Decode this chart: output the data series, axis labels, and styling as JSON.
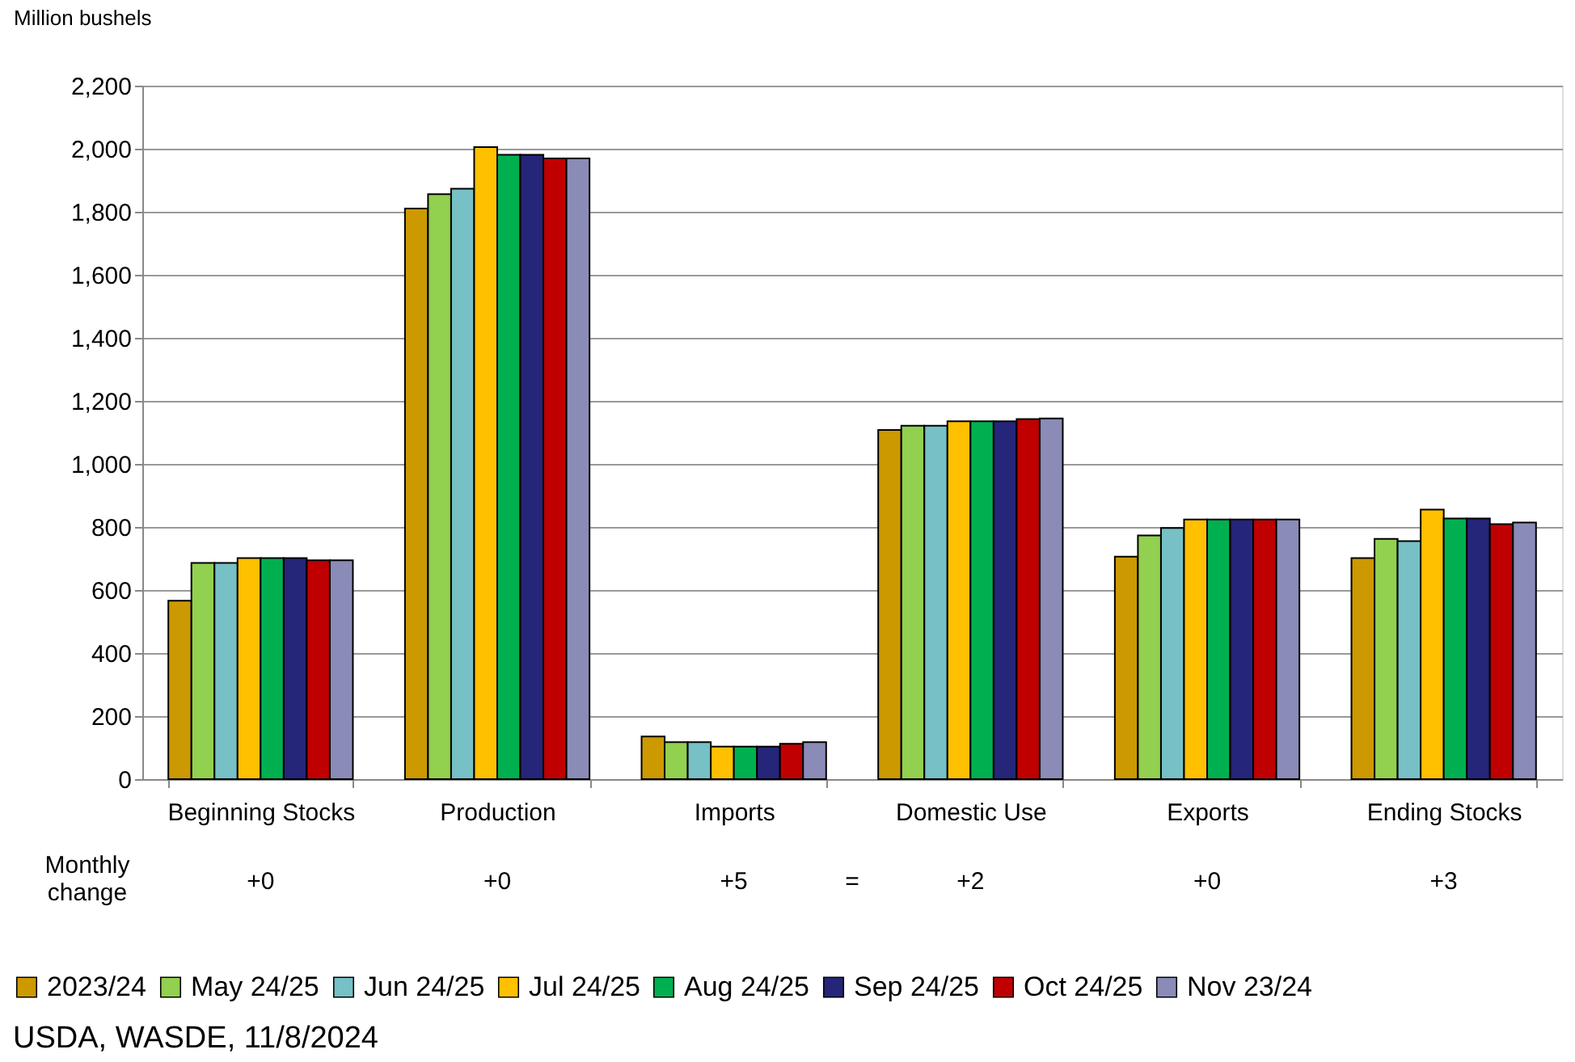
{
  "chart_data": {
    "type": "bar",
    "ylabel": "Million bushels",
    "categories": [
      "Beginning Stocks",
      "Production",
      "Imports",
      "Domestic Use",
      "Exports",
      "Ending Stocks"
    ],
    "series": [
      {
        "name": "2023/24",
        "color": "#cc9900",
        "values": [
          566,
          1810,
          135,
          1108,
          706,
          701
        ]
      },
      {
        "name": "May 24/25",
        "color": "#92d050",
        "values": [
          686,
          1856,
          117,
          1121,
          773,
          762
        ]
      },
      {
        "name": "Jun 24/25",
        "color": "#76c0c6",
        "values": [
          686,
          1873,
          117,
          1121,
          797,
          755
        ]
      },
      {
        "name": "Jul 24/25",
        "color": "#ffc000",
        "values": [
          701,
          2005,
          103,
          1135,
          824,
          855
        ]
      },
      {
        "name": "Aug 24/25",
        "color": "#00b050",
        "values": [
          701,
          1981,
          103,
          1135,
          824,
          827
        ]
      },
      {
        "name": "Sep 24/25",
        "color": "#25257a",
        "values": [
          701,
          1981,
          103,
          1135,
          824,
          827
        ]
      },
      {
        "name": "Oct 24/25",
        "color": "#c00000",
        "values": [
          694,
          1969,
          112,
          1142,
          824,
          809
        ]
      },
      {
        "name": "Nov 23/24",
        "color": "#8b8bb8",
        "values": [
          694,
          1969,
          117,
          1144,
          824,
          814
        ]
      }
    ],
    "ylim": [
      0,
      2200
    ],
    "yticks": [
      0,
      200,
      400,
      600,
      800,
      {
        "value": 1000,
        "label": "1,000"
      },
      {
        "value": 1200,
        "label": "1,200"
      },
      {
        "value": 1400,
        "label": "1,400"
      },
      {
        "value": 1600,
        "label": "1,600"
      },
      {
        "value": 1800,
        "label": "1,800"
      },
      {
        "value": 2000,
        "label": "2,000"
      },
      {
        "value": 2200,
        "label": "2,200"
      }
    ],
    "grid": "y",
    "legend": "bottom",
    "annotations": [
      "Monthly change",
      "+0",
      "+0",
      "+5",
      "+2",
      "+0",
      "+3",
      "=",
      "USDA, WASDE, 11/8/2024"
    ]
  }
}
